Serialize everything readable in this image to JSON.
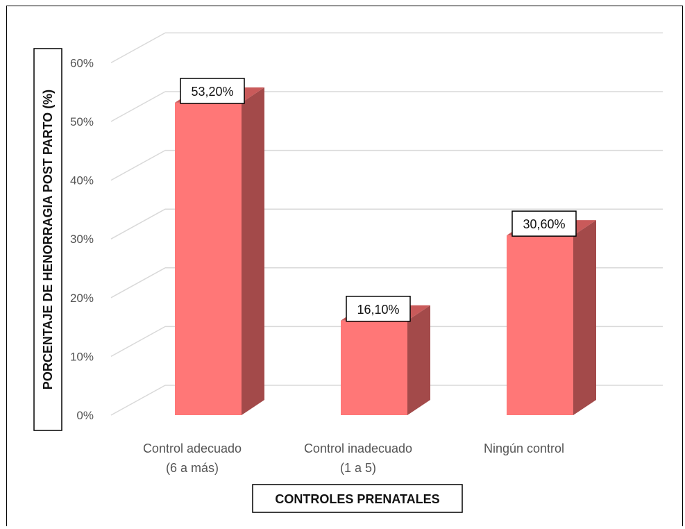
{
  "chart_data": {
    "type": "bar",
    "style": "3d-column",
    "categories": [
      "Control adecuado\n(6 a más)",
      "Control inadecuado\n(1 a 5)",
      "Ningún control"
    ],
    "values": [
      53.2,
      16.1,
      30.6
    ],
    "value_labels": [
      "53,20%",
      "16,10%",
      "30,60%"
    ],
    "xlabel": "CONTROLES PRENATALES",
    "ylabel": "PORCENTAJE DE HENORRAGIA POST PARTO (%)",
    "ylim": [
      0,
      60
    ],
    "y_ticks": [
      "0%",
      "10%",
      "20%",
      "30%",
      "40%",
      "50%",
      "60%"
    ],
    "grid": true,
    "legend": "none",
    "colors": {
      "bar_front": "#ff7777",
      "bar_side": "#a34a4a",
      "bar_top": "#c95a5a",
      "grid": "#d9d9d9"
    }
  }
}
